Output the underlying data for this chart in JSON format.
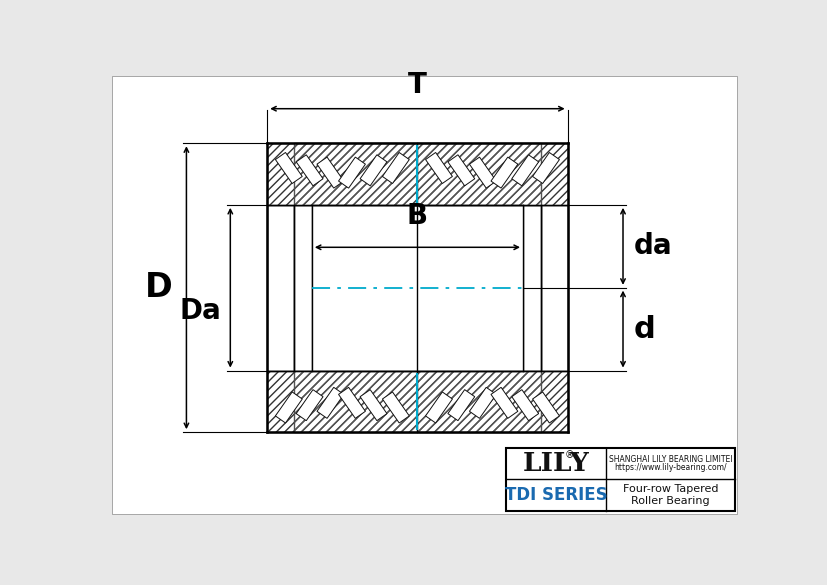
{
  "bg_color": "#e8e8e8",
  "line_color": "#000000",
  "cyan_color": "#00aacc",
  "label_T": "T",
  "label_D": "D",
  "label_Da": "Da",
  "label_B": "B",
  "label_da": "da",
  "label_d": "d",
  "logo_sup": "®",
  "company_line1": "SHANGHAI LILY BEARING LIMITEI",
  "company_line2": "https://www.lily-bearing.com/",
  "series_text": "TDI SERIES",
  "product_text": "Four-row Tapered\nRoller Bearing"
}
